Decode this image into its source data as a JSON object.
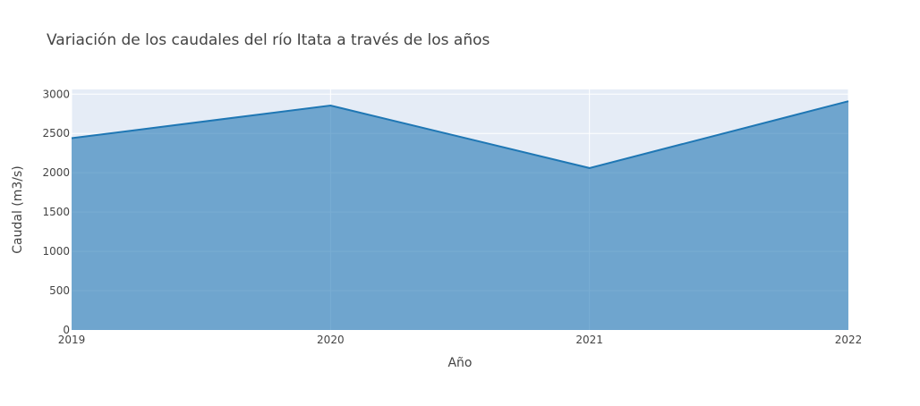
{
  "colors": {
    "background": "#ffffff",
    "plot_background": "#e5ecf6",
    "grid": "#ffffff",
    "line": "#1f77b4",
    "area_fill": "rgba(31,119,180,0.6)",
    "text": "#444444",
    "title_text": "#444444"
  },
  "chart_data": {
    "type": "area",
    "title": "Variación de los caudales del río Itata a través de los años",
    "xlabel": "Año",
    "ylabel": "Caudal (m3/s)",
    "x": [
      "2019",
      "2020",
      "2021",
      "2022"
    ],
    "series": [
      {
        "values": [
          2440,
          2855,
          2060,
          2910
        ]
      }
    ],
    "xlim": [
      2019,
      2022
    ],
    "ylim": [
      0,
      3060
    ],
    "yticks": [
      0,
      500,
      1000,
      1500,
      2000,
      2500,
      3000
    ],
    "grid": true,
    "legend": "none"
  }
}
